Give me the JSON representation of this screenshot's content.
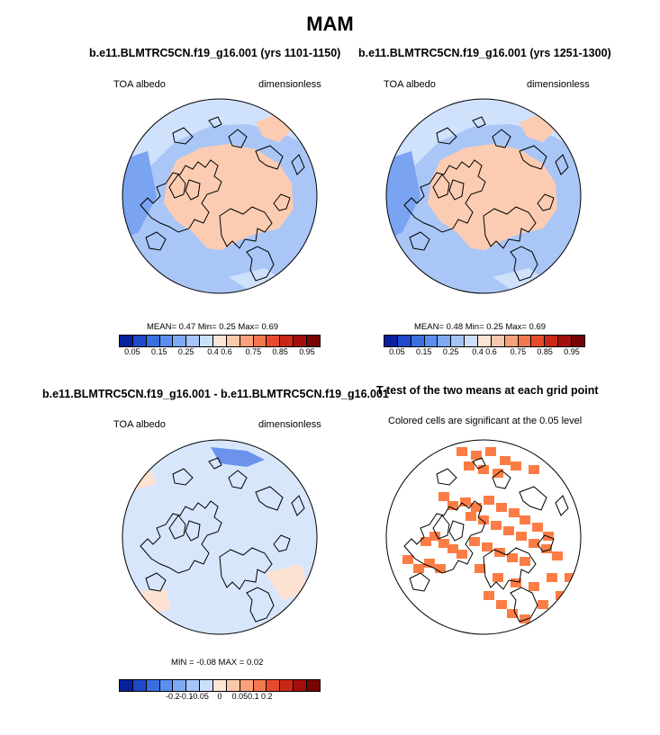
{
  "title": "MAM",
  "panels": {
    "p1": {
      "title": "b.e11.BLMTRC5CN.f19_g16.001 (yrs 1101-1150)",
      "left_label": "TOA albedo",
      "right_label": "dimensionless",
      "stats": "MEAN=   0.47  Min=   0.25  Max=   0.69"
    },
    "p2": {
      "title": "b.e11.BLMTRC5CN.f19_g16.001 (yrs 1251-1300)",
      "left_label": "TOA albedo",
      "right_label": "dimensionless",
      "stats": "MEAN=   0.48  Min=   0.25  Max=   0.69"
    },
    "p3": {
      "title": "b.e11.BLMTRC5CN.f19_g16.001 - b.e11.BLMTRC5CN.f19_g16.001",
      "left_label": "TOA albedo",
      "right_label": "dimensionless",
      "stats": "MIN =  -0.08 MAX =   0.02"
    },
    "p4": {
      "title": "T-test of the two means at each grid point",
      "subtitle": "Colored cells are significant at the 0.05 level"
    }
  },
  "colorbars": {
    "mean": {
      "colors": [
        "#08209c",
        "#1f49c8",
        "#3a6fe0",
        "#5a8ef0",
        "#7ea9f5",
        "#a5c4f8",
        "#cde0fb",
        "#fde5d6",
        "#fcc8ac",
        "#f9a17a",
        "#f4774f",
        "#e74b2c",
        "#c92818",
        "#a30f0c",
        "#760404"
      ],
      "tick_labels": [
        "0.05",
        "0.15",
        "0.25",
        "0.4",
        "0.6",
        "0.75",
        "0.85",
        "0.95"
      ]
    },
    "diff": {
      "colors": [
        "#08209c",
        "#1f49c8",
        "#3a6fe0",
        "#5a8ef0",
        "#7ea9f5",
        "#a5c4f8",
        "#cde0fb",
        "#fde5d6",
        "#fcc8ac",
        "#f9a17a",
        "#f4774f",
        "#e74b2c",
        "#c92818",
        "#a30f0c",
        "#760404"
      ],
      "tick_labels": [
        "-0.2",
        "-0.1",
        "-0.05",
        "0",
        "0.05",
        "0.1",
        "0.2"
      ]
    }
  },
  "map_colors": {
    "ice": "#fcccb2",
    "ocean_light": "#cfe1fb",
    "ocean_mid": "#aac6f7",
    "ocean_dark": "#7aa3f2",
    "ocean_deep": "#5a8ef0",
    "diff_base": "#d7e6fb",
    "diff_pos": "#fde2d2",
    "diff_neg": "#6b93ec",
    "significant": "#fb7d45",
    "coast": "#000000"
  }
}
